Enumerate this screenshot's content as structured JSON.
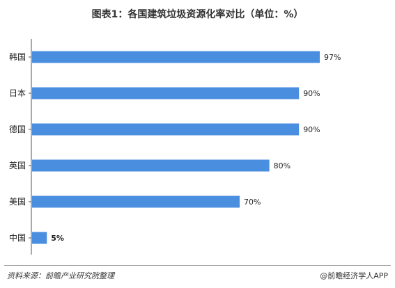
{
  "chart_data": {
    "type": "bar",
    "orientation": "horizontal",
    "title": "图表1：各国建筑垃圾资源化率对比（单位：%）",
    "categories": [
      "韩国",
      "日本",
      "德国",
      "英国",
      "美国",
      "中国"
    ],
    "values": [
      97,
      90,
      90,
      80,
      70,
      5
    ],
    "value_labels": [
      "97%",
      "90%",
      "90%",
      "80%",
      "70%",
      "5%"
    ],
    "xlim": [
      0,
      100
    ],
    "grid": false,
    "bar_color": "#4a8ee0",
    "highlight": {
      "category": "中国",
      "label_color": "#e03030"
    }
  },
  "footer": {
    "source": "资料来源：前瞻产业研究院整理",
    "brand": "@前瞻经济学人APP"
  }
}
